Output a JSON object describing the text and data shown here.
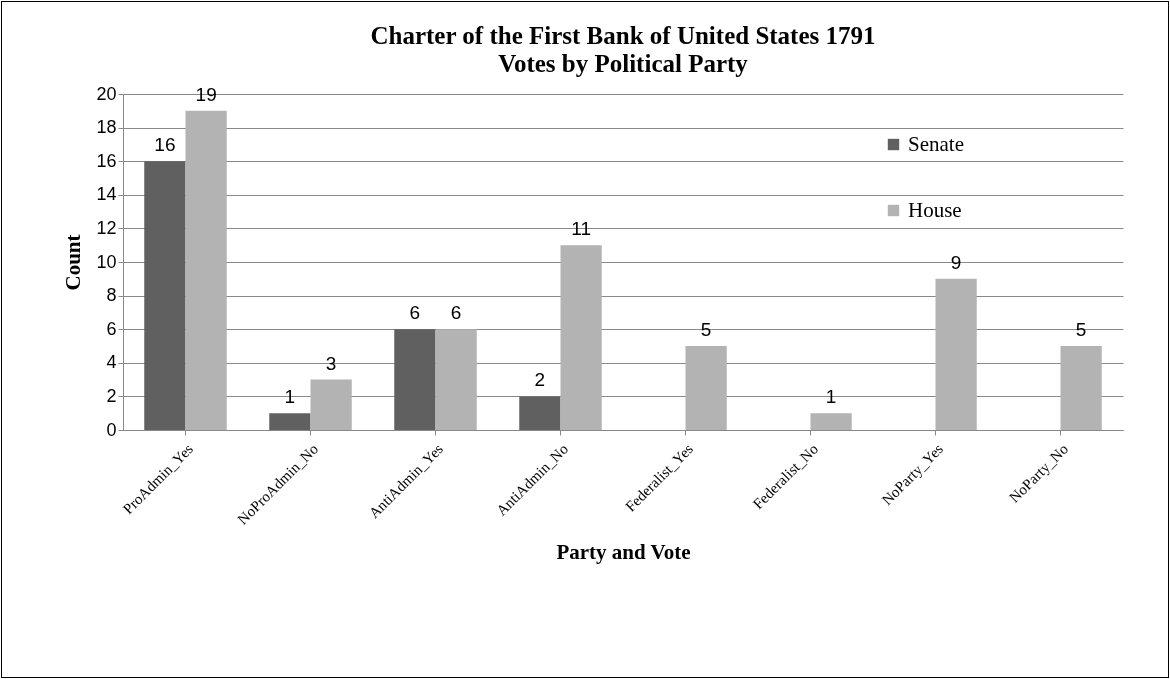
{
  "chart_data": {
    "type": "bar",
    "title": "Charter of the First Bank of United States 1791",
    "subtitle": "Votes by Political Party",
    "xlabel": "Party and Vote",
    "ylabel": "Count",
    "categories": [
      "ProAdmin_Yes",
      "NoProAdmin_No",
      "AntiAdmin_Yes",
      "AntiAdmin_No",
      "Federalist_Yes",
      "Federalist_No",
      "NoParty_Yes",
      "NoParty_No"
    ],
    "series": [
      {
        "name": "Senate",
        "color": "#606060",
        "values": [
          16,
          1,
          6,
          2,
          null,
          null,
          null,
          null
        ]
      },
      {
        "name": "House",
        "color": "#b3b3b3",
        "values": [
          19,
          3,
          6,
          11,
          5,
          1,
          9,
          5
        ]
      }
    ],
    "ylim": [
      0,
      20
    ],
    "yticks": [
      0,
      2,
      4,
      6,
      8,
      10,
      12,
      14,
      16,
      18,
      20
    ],
    "grid": "y",
    "legend": "top right",
    "data_labels": true
  }
}
